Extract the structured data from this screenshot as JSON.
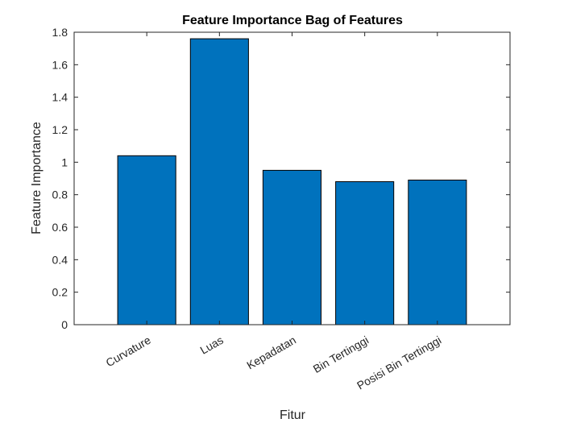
{
  "chart_data": {
    "type": "bar",
    "title": "Feature Importance  Bag of Features",
    "xlabel": "Fitur",
    "ylabel": "Feature Importance",
    "categories": [
      "Curvature",
      "Luas",
      "Kepadatan",
      "Bin Tertinggi",
      "Posisi Bin Tertinggi"
    ],
    "values": [
      1.04,
      1.76,
      0.95,
      0.88,
      0.89
    ],
    "ylim": [
      0,
      1.8
    ],
    "yticks": [
      "0",
      "0.2",
      "0.4",
      "0.6",
      "0.8",
      "1",
      "1.2",
      "1.4",
      "1.6",
      "1.8"
    ],
    "grid": false,
    "legend": "none",
    "bar_color": "#0072BD",
    "bar_edge_color": "#000000"
  }
}
